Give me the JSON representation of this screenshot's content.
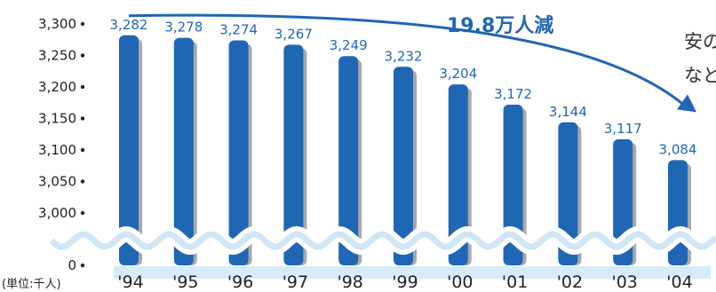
{
  "chart_data": {
    "type": "bar",
    "categories": [
      "'94",
      "'95",
      "'96",
      "'97",
      "'98",
      "'99",
      "'00",
      "'01",
      "'02",
      "'03",
      "'04"
    ],
    "values": [
      3282,
      3278,
      3274,
      3267,
      3249,
      3232,
      3204,
      3172,
      3144,
      3117,
      3084
    ],
    "value_labels": [
      "3,282",
      "3,278",
      "3,274",
      "3,267",
      "3,249",
      "3,232",
      "3,204",
      "3,172",
      "3,144",
      "3,117",
      "3,084"
    ],
    "y_ticks": [
      0,
      3000,
      3050,
      3100,
      3150,
      3200,
      3250,
      3300
    ],
    "y_tick_labels": [
      "0",
      "3,000",
      "3,050",
      "3,100",
      "3,150",
      "3,200",
      "3,250",
      "3,300"
    ],
    "ylim": [
      0,
      3300
    ],
    "y_axis_break": [
      0,
      3000
    ],
    "unit_label": "(単位:千人)",
    "annotation": "19.8万人減",
    "trend_arrow": true,
    "grid": false,
    "colors": {
      "bar": "#1f66b5",
      "bar_shadow": "#a8a8a8",
      "accent": "#1f66b5",
      "break_wave": "#cfe6f4",
      "axis_band": "#d6ecf8"
    }
  },
  "side_text": {
    "line1": "安の",
    "line2": "など"
  }
}
